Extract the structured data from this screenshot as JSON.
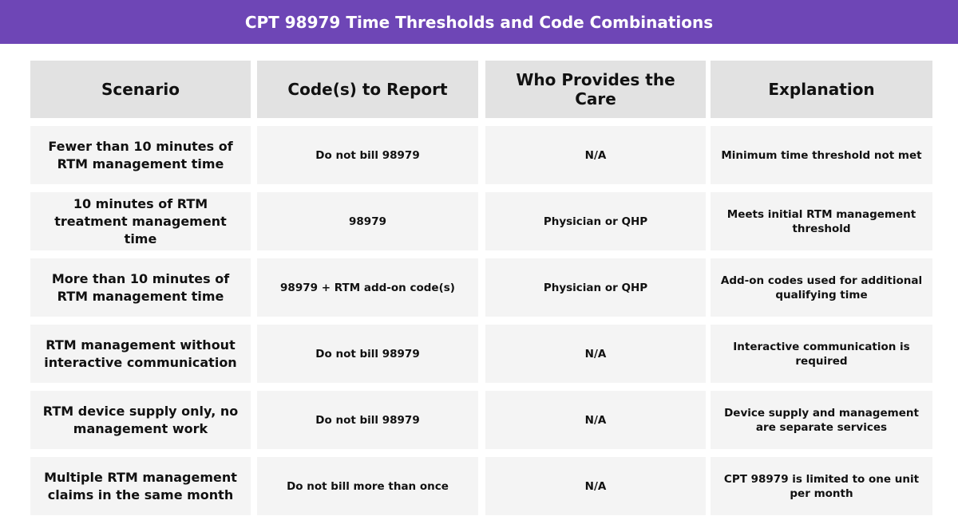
{
  "header": {
    "title": "CPT 98979 Time Thresholds and Code Combinations"
  },
  "table": {
    "columns": [
      "Scenario",
      "Code(s) to Report",
      "Who Provides the Care",
      "Explanation"
    ],
    "rows": [
      [
        "Fewer than 10 minutes of RTM management time",
        "Do not bill 98979",
        "N/A",
        "Minimum time threshold not met"
      ],
      [
        "10 minutes of RTM treatment management time",
        "98979",
        "Physician or QHP",
        "Meets initial RTM management threshold"
      ],
      [
        "More than 10 minutes of RTM management time",
        "98979 + RTM add-on code(s)",
        "Physician or QHP",
        "Add-on codes used for additional qualifying time"
      ],
      [
        "RTM management without interactive communication",
        "Do not bill 98979",
        "N/A",
        "Interactive communication is required"
      ],
      [
        "RTM device supply only, no management work",
        "Do not bill 98979",
        "N/A",
        "Device supply and management are separate services"
      ],
      [
        "Multiple RTM management claims in the same month",
        "Do not bill more than once",
        "N/A",
        "CPT 98979 is limited to one unit per month"
      ]
    ]
  }
}
